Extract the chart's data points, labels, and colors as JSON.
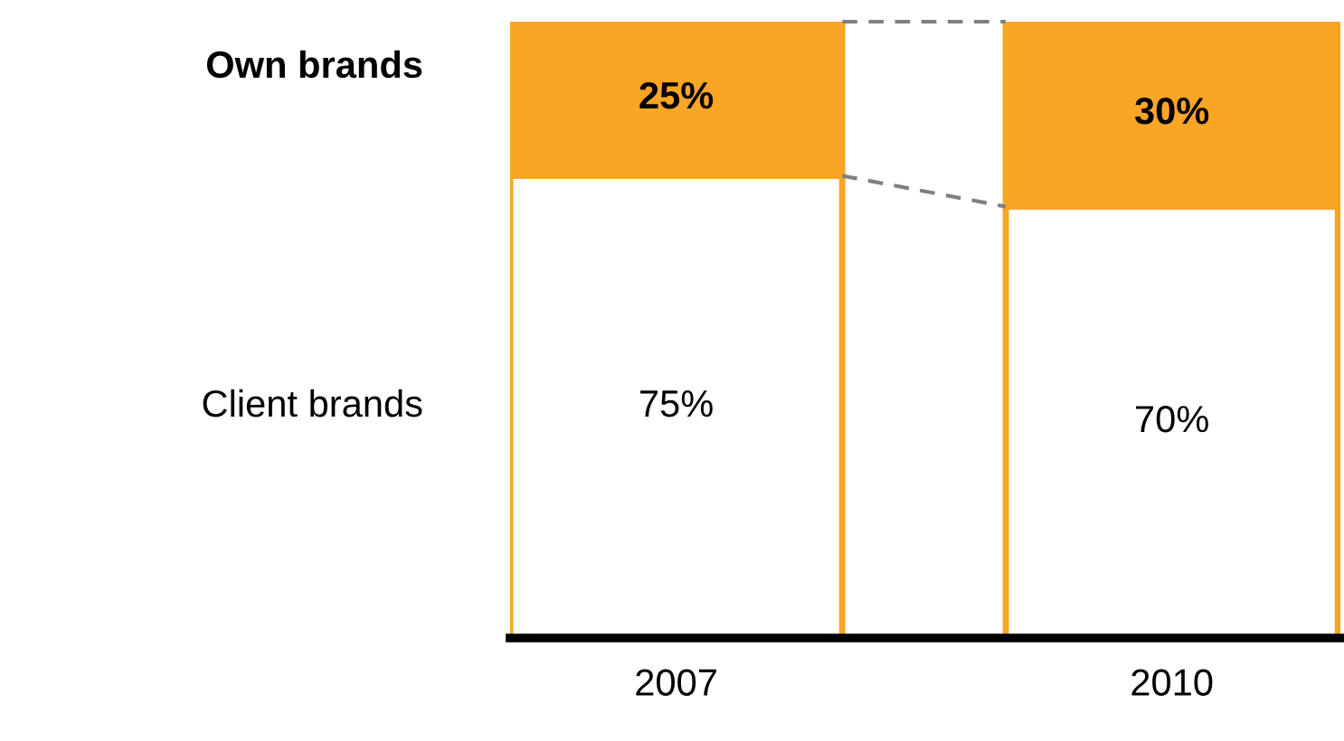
{
  "chart_data": {
    "type": "bar",
    "stacked": true,
    "categories": [
      "2007",
      "2010"
    ],
    "series": [
      {
        "name": "Client brands",
        "color": "#ffffff",
        "values": [
          75,
          70
        ],
        "value_labels": [
          "75%",
          "70%"
        ]
      },
      {
        "name": "Own brands",
        "color": "#f9a526",
        "values": [
          25,
          30
        ],
        "value_labels": [
          "25%",
          "30%"
        ]
      }
    ],
    "legend": false,
    "grid": false
  }
}
